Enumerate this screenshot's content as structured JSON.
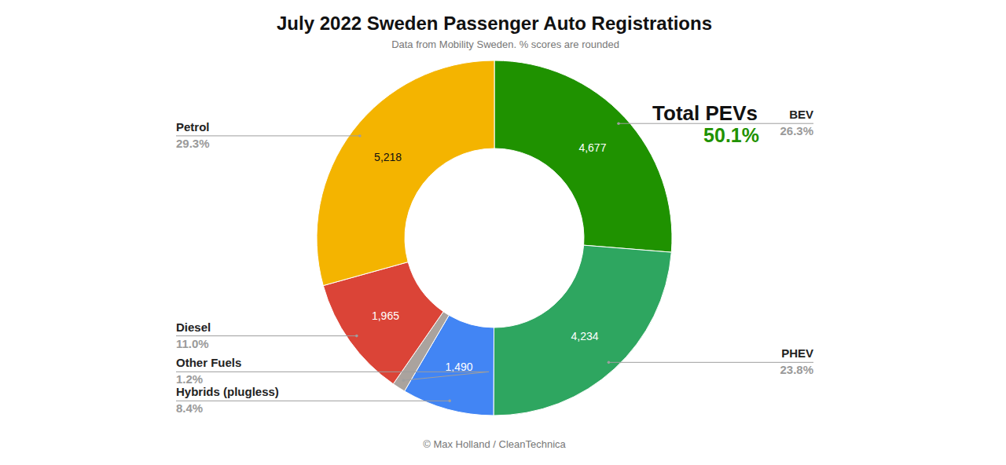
{
  "chart_data": {
    "type": "donut",
    "title": "July 2022 Sweden Passenger Auto Registrations",
    "subtitle": "Data from Mobility Sweden. % scores are rounded",
    "footer": "© Max Holland / CleanTechnica",
    "annotations": [
      {
        "text": "Total PEVs"
      },
      {
        "text": "50.1%"
      }
    ],
    "categories": [
      "BEV",
      "PHEV",
      "Hybrids (plugless)",
      "Other Fuels",
      "Diesel",
      "Petrol"
    ],
    "values": [
      4677,
      4234,
      1490,
      213,
      1965,
      5218
    ],
    "value_labels": [
      "4,677",
      "4,234",
      "1,490",
      null,
      "1,965",
      "5,218"
    ],
    "percent_labels": [
      "26.3%",
      "23.8%",
      "8.4%",
      "1.2%",
      "11.0%",
      "29.3%"
    ],
    "colors": [
      "#1f9200",
      "#2ea660",
      "#4285f4",
      "#aaa39e",
      "#db4437",
      "#f4b400"
    ],
    "data_labels": true
  }
}
